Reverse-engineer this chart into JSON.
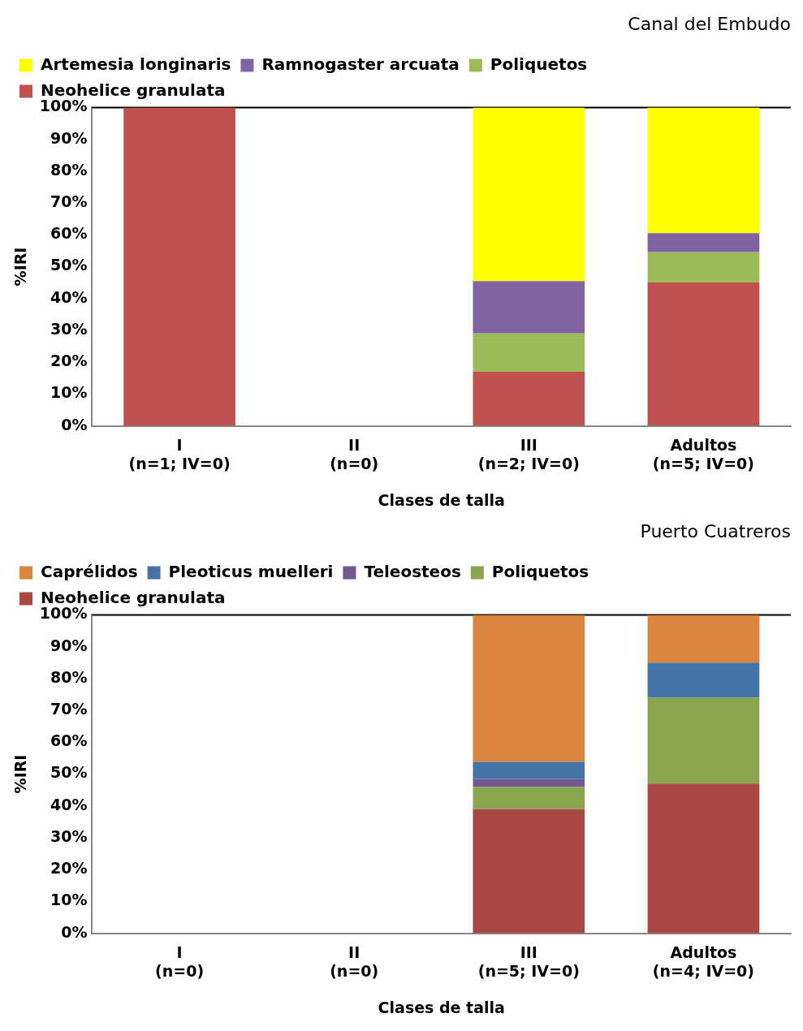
{
  "chart_data": [
    {
      "type": "bar",
      "title": "Canal del Embudo",
      "xlabel": "Clases de talla",
      "ylabel": "%IRI",
      "stacked": true,
      "legend": "top",
      "grid": false,
      "categories": [
        "I\n(n=1; IV=0)",
        "II\n(n=0)",
        "III\n(n=2; IV=0)",
        "Adultos\n(n=5; IV=0)"
      ],
      "ylim": [
        0,
        100
      ],
      "yticks": [
        {
          "value": 0,
          "label": "0%"
        },
        {
          "value": 10,
          "label": "10%"
        },
        {
          "value": 20,
          "label": "20%"
        },
        {
          "value": 30,
          "label": "30%"
        },
        {
          "value": 40,
          "label": "40%"
        },
        {
          "value": 50,
          "label": "50%"
        },
        {
          "value": 60,
          "label": "60%"
        },
        {
          "value": 70,
          "label": "70%"
        },
        {
          "value": 80,
          "label": "80%"
        },
        {
          "value": 90,
          "label": "90%"
        },
        {
          "value": 100,
          "label": "100%"
        }
      ],
      "series": [
        {
          "name": "Neohelice granulata",
          "color": "#c0504d",
          "values": [
            100,
            null,
            17,
            45
          ]
        },
        {
          "name": "Poliquetos",
          "color": "#9bbb59",
          "values": [
            null,
            null,
            12,
            9.5
          ]
        },
        {
          "name": "Ramnogaster arcuata",
          "color": "#8064a2",
          "values": [
            null,
            null,
            16.5,
            6
          ]
        },
        {
          "name": "Artemesia longinaris",
          "color": "#ffff00",
          "values": [
            null,
            null,
            54.5,
            39.5
          ]
        }
      ]
    },
    {
      "type": "bar",
      "title": "Puerto Cuatreros",
      "xlabel": "Clases de talla",
      "ylabel": "%IRI",
      "stacked": true,
      "legend": "top",
      "grid": false,
      "categories": [
        "I\n(n=0)",
        "II\n(n=0)",
        "III\n(n=5; IV=0)",
        "Adultos\n(n=4; IV=0)"
      ],
      "ylim": [
        0,
        100
      ],
      "yticks": [
        {
          "value": 0,
          "label": "0%"
        },
        {
          "value": 10,
          "label": "10%"
        },
        {
          "value": 20,
          "label": "20%"
        },
        {
          "value": 30,
          "label": "30%"
        },
        {
          "value": 40,
          "label": "40%"
        },
        {
          "value": 50,
          "label": "50%"
        },
        {
          "value": 60,
          "label": "60%"
        },
        {
          "value": 70,
          "label": "70%"
        },
        {
          "value": 80,
          "label": "80%"
        },
        {
          "value": 90,
          "label": "90%"
        },
        {
          "value": 100,
          "label": "100%"
        }
      ],
      "series": [
        {
          "name": "Neohelice granulata",
          "color": "#aa4744",
          "values": [
            null,
            null,
            39,
            47
          ]
        },
        {
          "name": "Poliquetos",
          "color": "#89a54e",
          "values": [
            null,
            null,
            7,
            27
          ]
        },
        {
          "name": "Teleosteos",
          "color": "#71588f",
          "values": [
            null,
            null,
            2.4,
            0
          ]
        },
        {
          "name": "Pleoticus muelleri",
          "color": "#4572a7",
          "values": [
            null,
            null,
            5.4,
            11
          ]
        },
        {
          "name": "Caprélidos",
          "color": "#db843d",
          "values": [
            null,
            null,
            46.2,
            15
          ]
        }
      ]
    }
  ]
}
